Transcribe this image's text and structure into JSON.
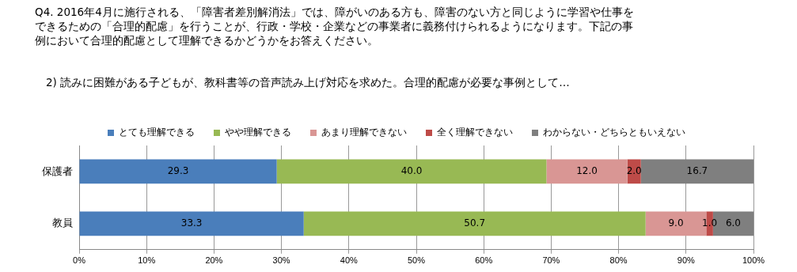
{
  "chart_data": {
    "type": "bar",
    "orientation": "horizontal",
    "stacked": true,
    "title": "Q4. 2016年4月に施行される、「障害者差別解消法」では、障がいのある方も、障害のない方と同じように学習や仕事をできるための「合理的配慮」を行うことが、行政・学校・企業などの事業者に義務付けられるようになります。下記の事例において合理的配慮として理解できるかどうかをお答えください。",
    "subtitle": "2) 読みに困難がある子どもが、教科書等の音声読み上げ対応を求めた。合理的配慮が必要な事例として…",
    "categories": [
      "保護者",
      "教員"
    ],
    "series": [
      {
        "name": "とても理解できる",
        "color": "#4a7ebb",
        "values": [
          29.3,
          33.3
        ],
        "value_labels": [
          "29.3",
          "33.3"
        ]
      },
      {
        "name": "やや理解できる",
        "color": "#98b954",
        "values": [
          40.0,
          50.7
        ],
        "value_labels": [
          "40.0",
          "50.7"
        ]
      },
      {
        "name": "あまり理解できない",
        "color": "#d99694",
        "values": [
          12.0,
          9.0
        ],
        "value_labels": [
          "12.0",
          "9.0"
        ]
      },
      {
        "name": "全く理解できない",
        "color": "#be4b48",
        "values": [
          2.0,
          1.0
        ],
        "value_labels": [
          "2.0",
          "1.0"
        ]
      },
      {
        "name": "わからない・どちらともいえない",
        "color": "#7f7f7f",
        "values": [
          16.7,
          6.0
        ],
        "value_labels": [
          "16.7",
          "6.0"
        ]
      }
    ],
    "xlim": [
      0,
      100
    ],
    "xticks": [
      {
        "value": 0,
        "label": "0%"
      },
      {
        "value": 10,
        "label": "10%"
      },
      {
        "value": 20,
        "label": "20%"
      },
      {
        "value": 30,
        "label": "30%"
      },
      {
        "value": 40,
        "label": "40%"
      },
      {
        "value": 50,
        "label": "50%"
      },
      {
        "value": 60,
        "label": "60%"
      },
      {
        "value": 70,
        "label": "70%"
      },
      {
        "value": 80,
        "label": "80%"
      },
      {
        "value": 90,
        "label": "90%"
      },
      {
        "value": 100,
        "label": "100%"
      }
    ],
    "grid": "x",
    "legend": "top"
  }
}
